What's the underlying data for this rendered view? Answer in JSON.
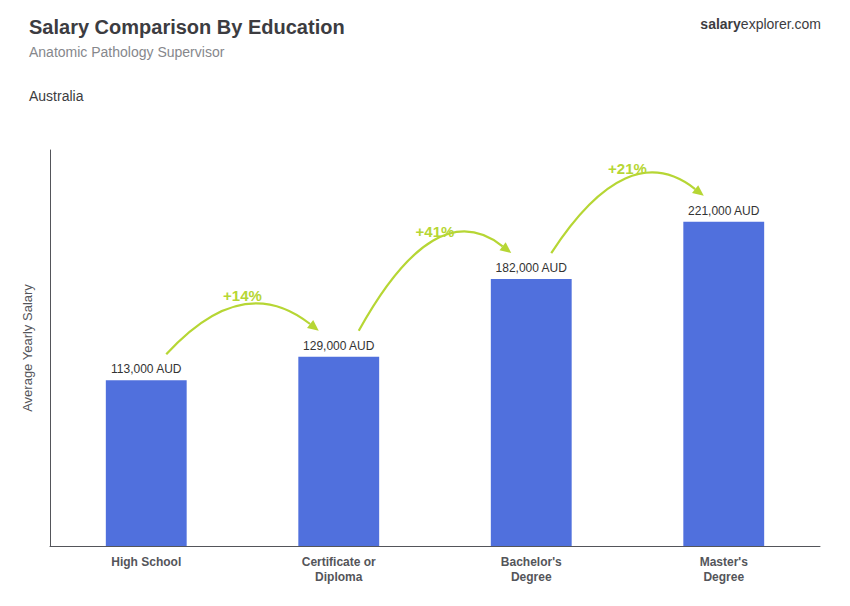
{
  "chart_data": {
    "type": "bar",
    "title": "Salary Comparison By Education",
    "subtitle": "Anatomic Pathology Supervisor",
    "ylabel": "Average Yearly Salary",
    "categories": [
      "High School",
      "Certificate or\nDiploma",
      "Bachelor's\nDegree",
      "Master's\nDegree"
    ],
    "values": [
      113000,
      129000,
      182000,
      221000
    ],
    "value_labels": [
      "113,000 AUD",
      "129,000 AUD",
      "182,000 AUD",
      "221,000 AUD"
    ],
    "data_labels": true,
    "ylim": [
      0,
      270000
    ],
    "grid": false,
    "tick_labels": "x",
    "annotations": [
      {
        "text": "+14%",
        "from": "High School",
        "to": "Certificate or\nDiploma"
      },
      {
        "text": "+41%",
        "from": "Certificate or\nDiploma",
        "to": "Bachelor's\nDegree"
      },
      {
        "text": "+21%",
        "from": "Bachelor's\nDegree",
        "to": "Master's\nDegree"
      },
      {
        "text": "Australia"
      },
      {
        "text": [
          "salary",
          "explorer.com"
        ]
      }
    ]
  }
}
